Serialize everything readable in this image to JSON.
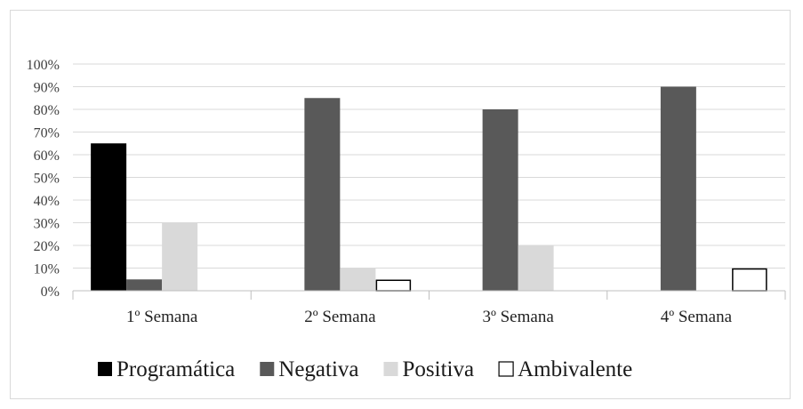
{
  "chart_data": {
    "type": "bar",
    "categories": [
      "1º Semana",
      "2º Semana",
      "3º Semana",
      "4º Semana"
    ],
    "series": [
      {
        "name": "Programática",
        "values": [
          65,
          0,
          0,
          0
        ],
        "fill": "#000000",
        "stroke": "#000000"
      },
      {
        "name": "Negativa",
        "values": [
          5,
          85,
          80,
          90
        ],
        "fill": "#595959",
        "stroke": "#595959"
      },
      {
        "name": "Positiva",
        "values": [
          30,
          10,
          20,
          0
        ],
        "fill": "#d9d9d9",
        "stroke": "#d9d9d9"
      },
      {
        "name": "Ambivalente",
        "values": [
          0,
          5,
          0,
          10
        ],
        "fill": "#ffffff",
        "stroke": "#000000"
      }
    ],
    "yticks": [
      "0%",
      "10%",
      "20%",
      "30%",
      "40%",
      "50%",
      "60%",
      "70%",
      "80%",
      "90%",
      "100%"
    ],
    "ylim": [
      0,
      100
    ],
    "grid": true,
    "legend_position": "bottom"
  }
}
